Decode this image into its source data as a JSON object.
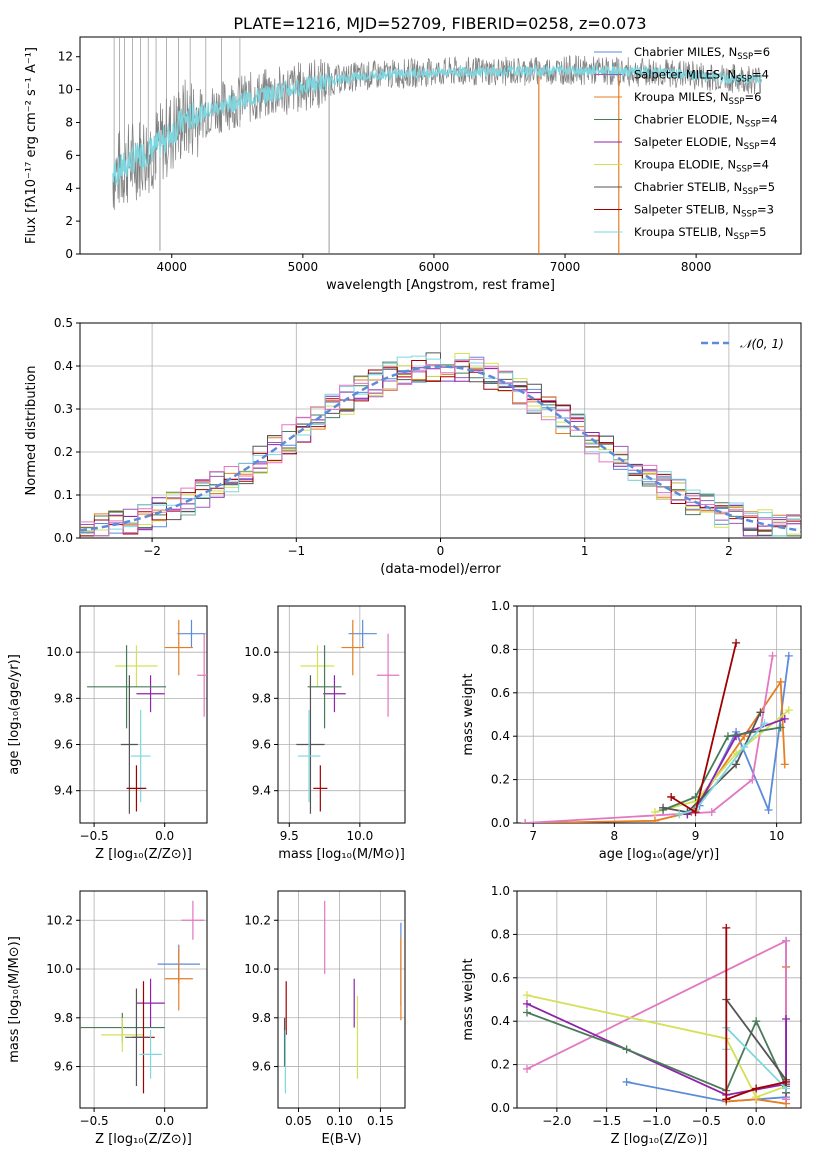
{
  "colors": {
    "chabrier_miles": "#5b8bd9",
    "salpeter_miles": "#9b59b6",
    "kroupa_miles": "#e67e22",
    "chabrier_elodie": "#4a7a5a",
    "salpeter_elodie": "#8e24aa",
    "kroupa_elodie": "#d4e157",
    "chabrier_stelib": "#555555",
    "salpeter_stelib": "#a00000",
    "kroupa_stelib": "#7ed6df",
    "pink": "#e377c2",
    "gauss": "#5b8bd9",
    "data": "#808080"
  },
  "chart_data": [
    {
      "type": "line",
      "title": "PLATE=1216, MJD=52709, FIBERID=0258, z=0.073",
      "xlabel": "wavelength [Angstrom, rest frame]",
      "ylabel": "Flux [fλ10⁻¹⁷ erg cm⁻² s⁻¹ A⁻¹]",
      "xlim": [
        3300,
        8800
      ],
      "ylim": [
        0,
        13.2
      ],
      "xticks": [
        4000,
        5000,
        6000,
        7000,
        8000
      ],
      "yticks": [
        0,
        2,
        4,
        6,
        8,
        10,
        12
      ],
      "legend_position": "right",
      "legend": [
        {
          "label": "Chabrier MILES, N",
          "sub": "SSP",
          "suffix": "=6",
          "color": "#5b8bd9"
        },
        {
          "label": "Salpeter MILES, N",
          "sub": "SSP",
          "suffix": "=4",
          "color": "#9b59b6"
        },
        {
          "label": "Kroupa MILES, N",
          "sub": "SSP",
          "suffix": "=6",
          "color": "#e67e22"
        },
        {
          "label": "Chabrier ELODIE, N",
          "sub": "SSP",
          "suffix": "=4",
          "color": "#4a7a5a"
        },
        {
          "label": "Salpeter ELODIE, N",
          "sub": "SSP",
          "suffix": "=4",
          "color": "#8e24aa"
        },
        {
          "label": "Kroupa ELODIE, N",
          "sub": "SSP",
          "suffix": "=4",
          "color": "#d4e157"
        },
        {
          "label": "Chabrier STELIB, N",
          "sub": "SSP",
          "suffix": "=5",
          "color": "#555555"
        },
        {
          "label": "Salpeter STELIB, N",
          "sub": "SSP",
          "suffix": "=3",
          "color": "#a00000"
        },
        {
          "label": "Kroupa STELIB, N",
          "sub": "SSP",
          "suffix": "=5",
          "color": "#7ed6df"
        }
      ],
      "continuum_x": [
        3550,
        3700,
        3900,
        4100,
        4300,
        4600,
        5000,
        5400,
        5800,
        6200,
        6600,
        7000,
        7400,
        7800,
        8200,
        8500
      ],
      "continuum_y": [
        4.8,
        5.7,
        6.6,
        8.2,
        8.8,
        9.5,
        10.2,
        10.8,
        11.0,
        11.1,
        11.1,
        11.2,
        11.1,
        11.0,
        10.7,
        10.6
      ]
    },
    {
      "type": "bar",
      "xlabel": "(data-model)/error",
      "ylabel": "Normed distribution",
      "xlim": [
        -2.5,
        2.5
      ],
      "ylim": [
        0,
        0.5
      ],
      "xticks": [
        -2,
        -1,
        0,
        1,
        2
      ],
      "yticks": [
        0.0,
        0.1,
        0.2,
        0.3,
        0.4,
        0.5
      ],
      "legend": [
        "𝒩(0, 1)"
      ],
      "bin_width": 0.1
    },
    {
      "type": "scatter",
      "xlabel": "Z [log₁₀(Z/Z⊙)]",
      "ylabel": "age  [log₁₀(age/yr)]",
      "xlim": [
        -0.6,
        0.3
      ],
      "ylim": [
        9.26,
        10.2
      ],
      "xticks": [
        -0.5,
        0.0
      ],
      "yticks": [
        9.4,
        9.6,
        9.8,
        10.0
      ],
      "points": [
        {
          "x": 0.19,
          "y": 10.08,
          "xerr": 0.1,
          "yerr": 0.06,
          "color": "#5b8bd9"
        },
        {
          "x": 0.1,
          "y": 10.02,
          "xerr": 0.1,
          "yerr": 0.12,
          "color": "#e67e22"
        },
        {
          "x": 0.28,
          "y": 9.9,
          "xerr": 0.05,
          "yerr": 0.18,
          "color": "#e377c2"
        },
        {
          "x": -0.2,
          "y": 9.94,
          "xerr": 0.15,
          "yerr": 0.09,
          "color": "#d4e157"
        },
        {
          "x": -0.1,
          "y": 9.82,
          "xerr": 0.1,
          "yerr": 0.08,
          "color": "#8e24aa"
        },
        {
          "x": -0.27,
          "y": 9.85,
          "xerr": 0.28,
          "yerr": 0.18,
          "color": "#4a7a5a"
        },
        {
          "x": -0.25,
          "y": 9.6,
          "xerr": 0.06,
          "yerr": 0.3,
          "color": "#555555"
        },
        {
          "x": -0.17,
          "y": 9.55,
          "xerr": 0.07,
          "yerr": 0.2,
          "color": "#7ed6df"
        },
        {
          "x": -0.2,
          "y": 9.41,
          "xerr": 0.07,
          "yerr": 0.1,
          "color": "#a00000"
        }
      ]
    },
    {
      "type": "scatter",
      "xlabel": "mass [log₁₀(M/M⊙)]",
      "ylabel": "",
      "xlim": [
        9.42,
        10.32
      ],
      "ylim": [
        9.26,
        10.2
      ],
      "xticks": [
        9.5,
        10.0
      ],
      "yticks": [
        9.4,
        9.6,
        9.8,
        10.0
      ],
      "points": [
        {
          "x": 10.02,
          "y": 10.08,
          "xerr": 0.1,
          "yerr": 0.06,
          "color": "#5b8bd9"
        },
        {
          "x": 9.95,
          "y": 10.02,
          "xerr": 0.08,
          "yerr": 0.12,
          "color": "#e67e22"
        },
        {
          "x": 10.2,
          "y": 9.9,
          "xerr": 0.08,
          "yerr": 0.18,
          "color": "#e377c2"
        },
        {
          "x": 9.7,
          "y": 9.94,
          "xerr": 0.12,
          "yerr": 0.09,
          "color": "#d4e157"
        },
        {
          "x": 9.82,
          "y": 9.82,
          "xerr": 0.08,
          "yerr": 0.08,
          "color": "#8e24aa"
        },
        {
          "x": 9.75,
          "y": 9.85,
          "xerr": 0.12,
          "yerr": 0.18,
          "color": "#4a7a5a"
        },
        {
          "x": 9.65,
          "y": 9.6,
          "xerr": 0.1,
          "yerr": 0.3,
          "color": "#555555"
        },
        {
          "x": 9.64,
          "y": 9.55,
          "xerr": 0.08,
          "yerr": 0.2,
          "color": "#7ed6df"
        },
        {
          "x": 9.72,
          "y": 9.41,
          "xerr": 0.05,
          "yerr": 0.1,
          "color": "#a00000"
        }
      ]
    },
    {
      "type": "line",
      "xlabel": "age  [log₁₀(age/yr)]",
      "ylabel": "mass weight",
      "xlim": [
        6.8,
        10.3
      ],
      "ylim": [
        0,
        1.0
      ],
      "xticks": [
        7,
        8,
        9,
        10
      ],
      "yticks": [
        0.0,
        0.2,
        0.4,
        0.6,
        0.8,
        1.0
      ],
      "series": [
        {
          "color": "#5b8bd9",
          "x": [
            8.9,
            9.05,
            9.5,
            9.9,
            10.15
          ],
          "y": [
            0.04,
            0.08,
            0.42,
            0.06,
            0.77
          ]
        },
        {
          "color": "#e67e22",
          "x": [
            6.9,
            8.5,
            8.95,
            9.6,
            10.05,
            10.1
          ],
          "y": [
            0.0,
            0.01,
            0.05,
            0.4,
            0.65,
            0.27
          ]
        },
        {
          "color": "#e377c2",
          "x": [
            6.9,
            9.2,
            9.7,
            9.95
          ],
          "y": [
            0.0,
            0.05,
            0.2,
            0.77
          ]
        },
        {
          "color": "#d4e157",
          "x": [
            8.5,
            9.0,
            9.5,
            10.15
          ],
          "y": [
            0.05,
            0.1,
            0.32,
            0.52
          ]
        },
        {
          "color": "#8e24aa",
          "x": [
            8.9,
            9.0,
            9.5,
            10.1
          ],
          "y": [
            0.04,
            0.06,
            0.4,
            0.48
          ]
        },
        {
          "color": "#4a7a5a",
          "x": [
            8.6,
            9.0,
            9.4,
            10.05
          ],
          "y": [
            0.06,
            0.12,
            0.4,
            0.44
          ]
        },
        {
          "color": "#555555",
          "x": [
            8.6,
            8.9,
            9.5,
            9.8
          ],
          "y": [
            0.07,
            0.05,
            0.27,
            0.51
          ]
        },
        {
          "color": "#7ed6df",
          "x": [
            8.8,
            9.0,
            9.6,
            9.85
          ],
          "y": [
            0.04,
            0.06,
            0.35,
            0.46
          ]
        },
        {
          "color": "#a00000",
          "x": [
            8.7,
            9.0,
            9.5
          ],
          "y": [
            0.12,
            0.05,
            0.83
          ]
        }
      ]
    },
    {
      "type": "scatter",
      "xlabel": "Z [log₁₀(Z/Z⊙)]",
      "ylabel": "mass [log₁₀(M/M⊙)]",
      "xlim": [
        -0.6,
        0.3
      ],
      "ylim": [
        9.43,
        10.32
      ],
      "xticks": [
        -0.5,
        0.0
      ],
      "yticks": [
        9.6,
        9.8,
        10.0,
        10.2
      ],
      "points": [
        {
          "x": 0.2,
          "y": 10.2,
          "xerr": 0.08,
          "yerr": 0.08,
          "color": "#e377c2"
        },
        {
          "x": 0.1,
          "y": 10.02,
          "xerr": 0.15,
          "yerr": 0.08,
          "color": "#5b8bd9"
        },
        {
          "x": 0.1,
          "y": 9.96,
          "xerr": 0.1,
          "yerr": 0.13,
          "color": "#e67e22"
        },
        {
          "x": -0.1,
          "y": 9.86,
          "xerr": 0.1,
          "yerr": 0.1,
          "color": "#8e24aa"
        },
        {
          "x": -0.3,
          "y": 9.76,
          "xerr": 0.3,
          "yerr": 0.06,
          "color": "#4a7a5a"
        },
        {
          "x": -0.3,
          "y": 9.73,
          "xerr": 0.15,
          "yerr": 0.07,
          "color": "#d4e157"
        },
        {
          "x": -0.15,
          "y": 9.72,
          "xerr": 0.08,
          "yerr": 0.23,
          "color": "#a00000"
        },
        {
          "x": -0.2,
          "y": 9.72,
          "xerr": 0.08,
          "yerr": 0.2,
          "color": "#555555"
        },
        {
          "x": -0.1,
          "y": 9.65,
          "xerr": 0.08,
          "yerr": 0.1,
          "color": "#7ed6df"
        }
      ]
    },
    {
      "type": "scatter",
      "xlabel": "E(B-V)",
      "ylabel": "",
      "xlim": [
        0.025,
        0.18
      ],
      "ylim": [
        9.43,
        10.32
      ],
      "xticks": [
        0.05,
        0.1,
        0.15
      ],
      "yticks": [
        9.6,
        9.8,
        10.0,
        10.2
      ],
      "points": [
        {
          "x": 0.082,
          "y": 10.13,
          "yerr": 0.15,
          "color": "#e377c2"
        },
        {
          "x": 0.175,
          "y": 10.02,
          "yerr": 0.17,
          "color": "#5b8bd9"
        },
        {
          "x": 0.175,
          "y": 9.96,
          "yerr": 0.17,
          "color": "#e67e22"
        },
        {
          "x": 0.118,
          "y": 9.86,
          "yerr": 0.1,
          "color": "#8e24aa"
        },
        {
          "x": 0.122,
          "y": 9.72,
          "yerr": 0.17,
          "color": "#d4e157"
        },
        {
          "x": 0.035,
          "y": 9.84,
          "yerr": 0.11,
          "color": "#a00000"
        },
        {
          "x": 0.033,
          "y": 9.7,
          "yerr": 0.1,
          "color": "#555555"
        },
        {
          "x": 0.034,
          "y": 9.62,
          "yerr": 0.13,
          "color": "#7ed6df"
        }
      ]
    },
    {
      "type": "line",
      "xlabel": "Z [log₁₀(Z/Z⊙)]",
      "ylabel": "mass weight",
      "xlim": [
        -2.4,
        0.45
      ],
      "ylim": [
        0,
        1.0
      ],
      "xticks": [
        -2.0,
        -1.5,
        -1.0,
        -0.5,
        0.0
      ],
      "yticks": [
        0.0,
        0.2,
        0.4,
        0.6,
        0.8,
        1.0
      ],
      "series": [
        {
          "color": "#5b8bd9",
          "x": [
            -1.3,
            -0.3,
            0.3,
            0.3
          ],
          "y": [
            0.12,
            0.03,
            0.05,
            0.77
          ]
        },
        {
          "color": "#e67e22",
          "x": [
            -0.3,
            0.0,
            0.3,
            0.3
          ],
          "y": [
            0.03,
            0.04,
            0.02,
            0.65
          ]
        },
        {
          "color": "#e377c2",
          "x": [
            -2.3,
            0.3,
            0.3
          ],
          "y": [
            0.18,
            0.77,
            0.04
          ]
        },
        {
          "color": "#d4e157",
          "x": [
            -2.3,
            -0.3,
            0.0,
            0.3
          ],
          "y": [
            0.52,
            0.32,
            0.05,
            0.1
          ]
        },
        {
          "color": "#8e24aa",
          "x": [
            -2.3,
            -0.3,
            0.3,
            0.3
          ],
          "y": [
            0.48,
            0.06,
            0.11,
            0.41
          ]
        },
        {
          "color": "#4a7a5a",
          "x": [
            -2.3,
            -1.3,
            -0.3,
            0.0,
            0.3
          ],
          "y": [
            0.44,
            0.27,
            0.08,
            0.4,
            0.1
          ]
        },
        {
          "color": "#555555",
          "x": [
            -0.3,
            0.3,
            0.3
          ],
          "y": [
            0.5,
            0.13,
            0.07
          ]
        },
        {
          "color": "#7ed6df",
          "x": [
            -0.3,
            -0.3,
            0.3
          ],
          "y": [
            0.27,
            0.37,
            0.09
          ]
        },
        {
          "color": "#a00000",
          "x": [
            -0.3,
            -0.3,
            0.0,
            0.3
          ],
          "y": [
            0.83,
            0.04,
            0.09,
            0.12
          ]
        }
      ]
    }
  ]
}
